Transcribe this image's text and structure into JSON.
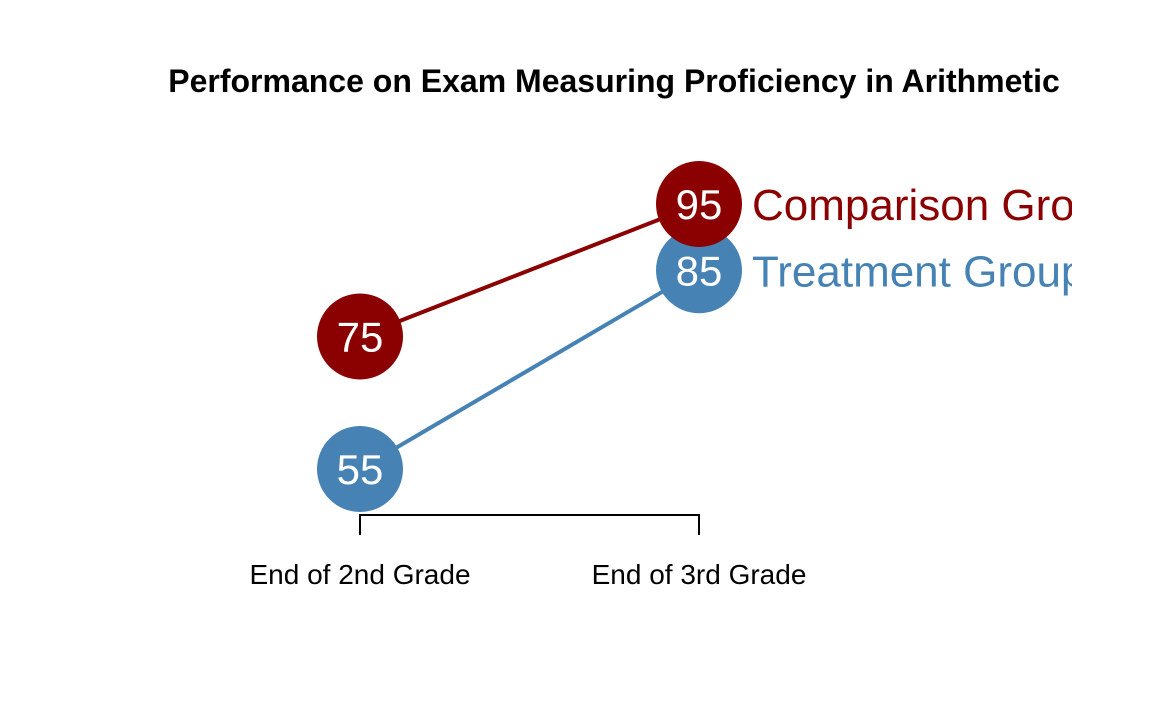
{
  "chart_data": {
    "type": "line",
    "title": "Performance on Exam Measuring Proficiency in Arithmetic",
    "categories": [
      "End of 2nd Grade",
      "End of 3rd Grade"
    ],
    "series": [
      {
        "name": "Comparison Group",
        "values": [
          75,
          95
        ],
        "color": "#8B0000"
      },
      {
        "name": "Treatment Group",
        "values": [
          55,
          85
        ],
        "color": "#4682B4"
      }
    ],
    "ylim": [
      55,
      95
    ],
    "grid": false,
    "legend": "right-end labels"
  }
}
